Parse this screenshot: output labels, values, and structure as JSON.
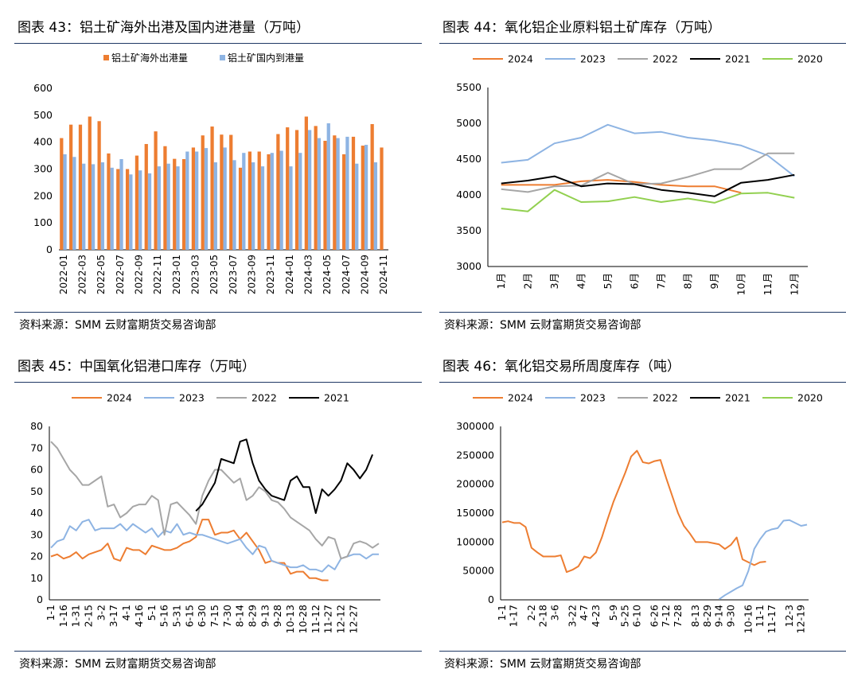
{
  "source_label": "资料来源：",
  "source_text": "SMM 云财富期货交易咨询部",
  "chart_data": [
    {
      "id": "c43",
      "type": "bar",
      "title_prefix": "图表 43：",
      "title": "铝土矿海外出港及国内进港量（万吨）",
      "ylim": [
        0,
        600
      ],
      "yticks": [
        0,
        100,
        200,
        300,
        400,
        500,
        600
      ],
      "categories": [
        "2022-01",
        "2022-02",
        "2022-03",
        "2022-04",
        "2022-05",
        "2022-06",
        "2022-07",
        "2022-08",
        "2022-09",
        "2022-10",
        "2022-11",
        "2022-12",
        "2023-01",
        "2023-02",
        "2023-03",
        "2023-04",
        "2023-05",
        "2023-06",
        "2023-07",
        "2023-08",
        "2023-09",
        "2023-10",
        "2023-11",
        "2023-12",
        "2024-01",
        "2024-02",
        "2024-03",
        "2024-04",
        "2024-05",
        "2024-06",
        "2024-07",
        "2024-08",
        "2024-09",
        "2024-10",
        "2024-11"
      ],
      "xtick_labels": [
        "2022-01",
        "2022-03",
        "2022-05",
        "2022-07",
        "2022-09",
        "2022-11",
        "2023-01",
        "2023-03",
        "2023-05",
        "2023-07",
        "2023-09",
        "2023-11",
        "2024-01",
        "2024-03",
        "2024-05",
        "2024-07",
        "2024-09",
        "2024-11"
      ],
      "series": [
        {
          "name": "铝土矿海外出港量",
          "color": "#ed7d31",
          "values": [
            415,
            465,
            465,
            495,
            478,
            358,
            300,
            300,
            350,
            393,
            440,
            385,
            338,
            337,
            380,
            425,
            458,
            428,
            427,
            305,
            365,
            365,
            355,
            430,
            455,
            445,
            495,
            460,
            405,
            425,
            355,
            420,
            387,
            467,
            380
          ]
        },
        {
          "name": "铝土矿国内到港量",
          "color": "#8eb4e3",
          "values": [
            355,
            345,
            320,
            318,
            325,
            305,
            337,
            280,
            295,
            284,
            310,
            320,
            310,
            365,
            365,
            378,
            325,
            380,
            333,
            360,
            325,
            310,
            360,
            368,
            310,
            360,
            445,
            415,
            470,
            415,
            420,
            320,
            390,
            325,
            0
          ]
        }
      ]
    },
    {
      "id": "c44",
      "type": "line",
      "title_prefix": "图表 44：",
      "title": "氧化铝企业原料铝土矿库存（万吨）",
      "ylim": [
        3000,
        5500
      ],
      "yticks": [
        3000,
        3500,
        4000,
        4500,
        5000,
        5500
      ],
      "categories": [
        "1月",
        "2月",
        "3月",
        "4月",
        "5月",
        "6月",
        "7月",
        "8月",
        "9月",
        "10月",
        "11月",
        "12月"
      ],
      "series": [
        {
          "name": "2024",
          "color": "#ed7d31",
          "values": [
            4140,
            4140,
            4140,
            4190,
            4210,
            4180,
            4140,
            4120,
            4120,
            4030,
            null,
            null
          ]
        },
        {
          "name": "2023",
          "color": "#8eb4e3",
          "values": [
            4450,
            4490,
            4720,
            4800,
            4980,
            4860,
            4880,
            4800,
            4760,
            4690,
            4550,
            4260
          ]
        },
        {
          "name": "2022",
          "color": "#a6a6a6",
          "values": [
            4080,
            4040,
            4120,
            4130,
            4310,
            4150,
            4160,
            4250,
            4360,
            4360,
            4580,
            4580
          ]
        },
        {
          "name": "2021",
          "color": "#000000",
          "values": [
            4160,
            4200,
            4260,
            4120,
            4160,
            4150,
            4070,
            4030,
            3980,
            4170,
            4210,
            4280
          ]
        },
        {
          "name": "2020",
          "color": "#92d050",
          "values": [
            3810,
            3770,
            4070,
            3900,
            3910,
            3970,
            3900,
            3950,
            3890,
            4020,
            4030,
            3960
          ]
        }
      ]
    },
    {
      "id": "c45",
      "type": "line",
      "title_prefix": "图表 45：",
      "title": "中国氧化铝港口库存（万吨）",
      "ylim": [
        0,
        80
      ],
      "yticks": [
        0,
        10,
        20,
        30,
        40,
        50,
        60,
        70,
        80
      ],
      "n_points": 53,
      "xtick_labels": [
        "1-1",
        "1-16",
        "1-31",
        "2-15",
        "3-2",
        "3-17",
        "4-1",
        "4-16",
        "5-1",
        "5-16",
        "5-31",
        "6-15",
        "6-30",
        "7-15",
        "7-30",
        "8-14",
        "8-29",
        "9-13",
        "9-28",
        "10-13",
        "10-28",
        "11-12",
        "11-27",
        "12-12",
        "12-27"
      ],
      "series": [
        {
          "name": "2024",
          "color": "#ed7d31",
          "values": [
            20,
            21,
            19,
            20,
            22,
            19,
            21,
            22,
            23,
            26,
            19,
            18,
            24,
            23,
            23,
            21,
            25,
            24,
            23,
            23,
            24,
            26,
            27,
            29,
            37,
            37,
            30,
            31,
            31,
            32,
            28,
            31,
            27,
            23,
            17,
            18,
            17,
            17,
            12,
            13,
            13,
            10,
            10,
            9,
            9,
            null,
            null,
            null,
            null,
            null,
            null,
            null,
            null
          ]
        },
        {
          "name": "2023",
          "color": "#8eb4e3",
          "values": [
            24,
            27,
            28,
            34,
            32,
            36,
            37,
            32,
            33,
            33,
            33,
            35,
            32,
            35,
            33,
            31,
            33,
            29,
            32,
            31,
            35,
            30,
            31,
            30,
            30,
            29,
            28,
            27,
            26,
            27,
            28,
            24,
            21,
            25,
            24,
            18,
            17,
            16,
            15,
            15,
            16,
            14,
            14,
            13,
            16,
            14,
            19,
            20,
            21,
            21,
            19,
            21,
            21
          ]
        },
        {
          "name": "2022",
          "color": "#a6a6a6",
          "values": [
            73,
            70,
            65,
            60,
            57,
            53,
            53,
            55,
            57,
            43,
            44,
            38,
            40,
            43,
            44,
            44,
            48,
            46,
            30,
            44,
            45,
            42,
            39,
            35,
            48,
            55,
            60,
            60,
            57,
            54,
            56,
            46,
            48,
            52,
            50,
            46,
            45,
            42,
            38,
            36,
            34,
            32,
            28,
            25,
            29,
            28,
            19,
            20,
            26,
            27,
            26,
            24,
            26
          ]
        },
        {
          "name": "2021",
          "color": "#000000",
          "values": [
            null,
            null,
            null,
            null,
            null,
            null,
            null,
            null,
            null,
            null,
            null,
            null,
            null,
            null,
            null,
            null,
            null,
            null,
            null,
            null,
            null,
            null,
            null,
            41,
            44,
            49,
            54,
            65,
            64,
            63,
            73,
            74,
            63,
            55,
            51,
            48,
            47,
            46,
            55,
            57,
            52,
            52,
            40,
            51,
            48,
            51,
            55,
            63,
            60,
            56,
            60,
            67,
            null
          ]
        }
      ]
    },
    {
      "id": "c46",
      "type": "line",
      "title_prefix": "图表 46：",
      "title": "氧化铝交易所周度库存（吨）",
      "ylim": [
        0,
        300000
      ],
      "yticks": [
        0,
        50000,
        100000,
        150000,
        200000,
        250000,
        300000
      ],
      "n_points": 53,
      "xtick_labels": [
        "1-1",
        "1-17",
        "2-2",
        "2-18",
        "3-6",
        "3-22",
        "4-7",
        "4-23",
        "5-9",
        "5-25",
        "6-10",
        "6-26",
        "7-12",
        "7-28",
        "8-13",
        "8-29",
        "9-14",
        "9-30",
        "10-16",
        "11-1",
        "11-17",
        "12-3",
        "12-19"
      ],
      "series": [
        {
          "name": "2024",
          "color": "#ed7d31",
          "values": [
            134000,
            136000,
            133000,
            133000,
            126000,
            90000,
            82000,
            75000,
            75000,
            75000,
            77000,
            48000,
            52000,
            58000,
            75000,
            72000,
            82000,
            108000,
            140000,
            170000,
            195000,
            220000,
            248000,
            258000,
            238000,
            236000,
            240000,
            242000,
            210000,
            180000,
            150000,
            128000,
            115000,
            100000,
            100000,
            100000,
            98000,
            96000,
            88000,
            95000,
            108000,
            70000,
            65000,
            60000,
            65000,
            66000,
            null,
            null,
            null,
            null,
            null,
            null,
            null
          ]
        },
        {
          "name": "2023",
          "color": "#8eb4e3",
          "values": [
            null,
            null,
            null,
            null,
            null,
            null,
            null,
            null,
            null,
            null,
            null,
            null,
            null,
            null,
            null,
            null,
            null,
            null,
            null,
            null,
            null,
            null,
            null,
            null,
            null,
            null,
            null,
            null,
            null,
            null,
            null,
            null,
            null,
            null,
            null,
            null,
            null,
            1000,
            8000,
            14000,
            20000,
            25000,
            50000,
            88000,
            105000,
            118000,
            122000,
            124000,
            137000,
            138000,
            133000,
            128000,
            130000
          ]
        },
        {
          "name": "2022",
          "color": "#a6a6a6",
          "values": []
        },
        {
          "name": "2021",
          "color": "#000000",
          "values": []
        },
        {
          "name": "2020",
          "color": "#92d050",
          "values": []
        }
      ]
    }
  ]
}
